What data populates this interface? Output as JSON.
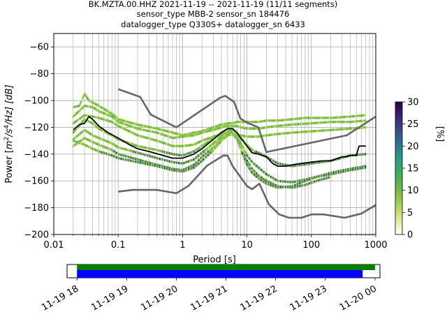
{
  "title_lines": [
    "BK.MZTA.00.HHZ   2021-11-19 -- 2021-11-19  (11/11 segments)",
    "sensor_type MBB-2 sensor_sn 184476",
    "datalogger_type Q330S+ datalogger_sn 6433"
  ],
  "chart_data": [
    {
      "type": "heatmap",
      "name": "ppsd",
      "xlabel": "Period [s]",
      "ylabel": "Power [m²/s⁴/Hz] [dB]",
      "ylabel_parts": {
        "pre": "Power [",
        "m": "m",
        "sup2": "2",
        "slash_s": "/s",
        "sup4": "4",
        "rest": "/Hz] [dB]"
      },
      "x_scale": "log",
      "xlim": [
        0.01,
        1000
      ],
      "ylim": [
        -200,
        -50
      ],
      "x_ticks": [
        {
          "value": 0.01,
          "label": "0.01"
        },
        {
          "value": 0.1,
          "label": "0.1"
        },
        {
          "value": 1,
          "label": "1"
        },
        {
          "value": 10,
          "label": "10"
        },
        {
          "value": 100,
          "label": "100"
        },
        {
          "value": 1000,
          "label": "1000"
        }
      ],
      "y_ticks": [
        {
          "value": -60,
          "label": "−60"
        },
        {
          "value": -80,
          "label": "−80"
        },
        {
          "value": -100,
          "label": "−100"
        },
        {
          "value": -120,
          "label": "−120"
        },
        {
          "value": -140,
          "label": "−140"
        },
        {
          "value": -160,
          "label": "−160"
        },
        {
          "value": -180,
          "label": "−180"
        },
        {
          "value": -200,
          "label": "−200"
        }
      ],
      "grid": true,
      "series": [
        {
          "name": "mean",
          "color": "#000000",
          "x": [
            0.02,
            0.025,
            0.03,
            0.035,
            0.04,
            0.05,
            0.07,
            0.1,
            0.15,
            0.2,
            0.3,
            0.5,
            0.7,
            1,
            1.5,
            2,
            3,
            4,
            5,
            6,
            7,
            8,
            10,
            12,
            15,
            20,
            25,
            30,
            40,
            50,
            70,
            100,
            150,
            200,
            300,
            350,
            400,
            500,
            550,
            700
          ],
          "y": [
            -122,
            -118,
            -117,
            -112,
            -114,
            -119,
            -124,
            -128,
            -133,
            -136,
            -138,
            -141,
            -143,
            -143,
            -140,
            -136,
            -129,
            -124,
            -121,
            -121,
            -124,
            -128,
            -134,
            -139,
            -140,
            -142,
            -147,
            -149,
            -149,
            -148,
            -147,
            -146,
            -145,
            -145,
            -142,
            -142,
            -141,
            -141,
            -134,
            -134
          ]
        },
        {
          "name": "noise-model-high",
          "color": "#666666",
          "x": [
            0.1,
            0.22,
            0.32,
            0.8,
            3.8,
            4.6,
            6.3,
            7.9,
            10,
            15,
            20,
            354,
            1000
          ],
          "y": [
            -91.5,
            -97.4,
            -110.5,
            -120,
            -98,
            -96.5,
            -101,
            -113.5,
            -116.5,
            -120,
            -138.5,
            -126,
            -112
          ]
        },
        {
          "name": "noise-model-low",
          "color": "#666666",
          "x": [
            0.1,
            0.17,
            0.4,
            0.8,
            1.24,
            2.4,
            4.3,
            5,
            6,
            10,
            12,
            15.6,
            21.9,
            31.6,
            45,
            70,
            101,
            154,
            328,
            600,
            1000
          ],
          "y": [
            -168,
            -166.7,
            -166.7,
            -169.2,
            -163.7,
            -148.6,
            -141.1,
            -141.1,
            -149,
            -163.8,
            -166.2,
            -162.1,
            -177.5,
            -185,
            -187.5,
            -187.5,
            -185,
            -185,
            -187.5,
            -184.4,
            -178
          ]
        }
      ],
      "density_colorbar": {
        "label": "[%]",
        "range": [
          0,
          30
        ],
        "ticks": [
          {
            "value": 0,
            "label": "0"
          },
          {
            "value": 5,
            "label": "5"
          },
          {
            "value": 10,
            "label": "10"
          },
          {
            "value": 15,
            "label": "15"
          },
          {
            "value": 20,
            "label": "20"
          },
          {
            "value": 25,
            "label": "25"
          },
          {
            "value": 30,
            "label": "30"
          }
        ],
        "colormap": [
          "#ffffff",
          "#cfe57a",
          "#8bc34a",
          "#4caf50",
          "#1f9e89",
          "#31688e",
          "#3b2f7e",
          "#2d004b"
        ]
      },
      "density_traces": [
        {
          "name": "trace-1",
          "x": [
            0.02,
            0.025,
            0.03,
            0.035,
            0.05,
            0.08,
            0.1,
            0.2,
            0.4,
            0.7,
            1,
            1.5,
            2,
            3,
            4,
            5,
            6,
            7,
            8,
            10,
            12,
            15,
            20,
            30,
            50,
            80,
            120,
            200,
            400,
            700
          ],
          "y": [
            -105,
            -104,
            -95,
            -100,
            -104,
            -110,
            -114,
            -118,
            -121,
            -124,
            -126,
            -124,
            -123,
            -120,
            -118,
            -117,
            -117,
            -116,
            -116,
            -116,
            -116,
            -116,
            -115,
            -115,
            -114,
            -113,
            -113,
            -113,
            -112,
            -111
          ]
        },
        {
          "name": "trace-2",
          "x": [
            0.02,
            0.03,
            0.04,
            0.05,
            0.08,
            0.1,
            0.2,
            0.4,
            0.7,
            1,
            1.5,
            2,
            3,
            4,
            5,
            6,
            7,
            8,
            10,
            15,
            20,
            30,
            50,
            100,
            200,
            400,
            700
          ],
          "y": [
            -112,
            -104,
            -105,
            -108,
            -112,
            -116,
            -121,
            -124,
            -128,
            -127,
            -126,
            -124,
            -122,
            -120,
            -119,
            -119,
            -119,
            -120,
            -121,
            -121,
            -120,
            -119,
            -118,
            -117,
            -116,
            -116,
            -115
          ]
        },
        {
          "name": "trace-3",
          "x": [
            0.02,
            0.03,
            0.04,
            0.05,
            0.08,
            0.1,
            0.2,
            0.4,
            0.7,
            1,
            1.5,
            2,
            3,
            4,
            5,
            6,
            8,
            10,
            15,
            20,
            30,
            50,
            100,
            200,
            400,
            700
          ],
          "y": [
            -117,
            -111,
            -112,
            -113,
            -116,
            -119,
            -126,
            -130,
            -134,
            -134,
            -133,
            -130,
            -127,
            -125,
            -124,
            -125,
            -126,
            -127,
            -127,
            -126,
            -125,
            -124,
            -123,
            -122,
            -121,
            -120
          ]
        },
        {
          "name": "trace-4",
          "x": [
            0.02,
            0.03,
            0.04,
            0.05,
            0.08,
            0.1,
            0.2,
            0.4,
            0.7,
            1,
            1.5,
            2,
            3,
            4,
            5,
            6,
            7,
            8,
            10,
            12,
            15,
            20,
            30,
            50,
            100,
            200,
            400,
            700
          ],
          "y": [
            -124,
            -114,
            -117,
            -121,
            -126,
            -129,
            -134,
            -137,
            -140,
            -141,
            -138,
            -134,
            -128,
            -124,
            -122,
            -122,
            -124,
            -128,
            -133,
            -137,
            -139,
            -142,
            -147,
            -149,
            -147,
            -145,
            -141,
            -140
          ]
        },
        {
          "name": "trace-5",
          "x": [
            0.02,
            0.03,
            0.04,
            0.05,
            0.08,
            0.1,
            0.2,
            0.4,
            0.7,
            1,
            1.5,
            2,
            3,
            4,
            5,
            6,
            7,
            8,
            10,
            12,
            15,
            20,
            30,
            50,
            80,
            120,
            200,
            400,
            700
          ],
          "y": [
            -129,
            -122,
            -126,
            -128,
            -132,
            -135,
            -139,
            -143,
            -146,
            -147,
            -144,
            -139,
            -132,
            -126,
            -123,
            -123,
            -126,
            -132,
            -141,
            -146,
            -150,
            -155,
            -160,
            -161,
            -159,
            -157,
            -154,
            -151,
            -149
          ]
        },
        {
          "name": "trace-6",
          "x": [
            0.02,
            0.03,
            0.04,
            0.05,
            0.08,
            0.1,
            0.2,
            0.4,
            0.7,
            1,
            1.5,
            2,
            3,
            4,
            5,
            6,
            7,
            8,
            10,
            12,
            15,
            20,
            30,
            50,
            80,
            120,
            200
          ],
          "y": [
            -134,
            -128,
            -131,
            -133,
            -137,
            -140,
            -144,
            -148,
            -151,
            -152,
            -148,
            -142,
            -135,
            -128,
            -124,
            -124,
            -128,
            -135,
            -145,
            -151,
            -156,
            -160,
            -164,
            -165,
            -163,
            -160,
            -157
          ]
        },
        {
          "name": "trace-7",
          "x": [
            0.02,
            0.03,
            0.04,
            0.05,
            0.08,
            0.1,
            0.2,
            0.4,
            0.7,
            1,
            1.5,
            2,
            3,
            4,
            5,
            6,
            7,
            8,
            10,
            12,
            15,
            20,
            30,
            50,
            80,
            120,
            200,
            400,
            700
          ],
          "y": [
            -130,
            -133,
            -136,
            -138,
            -141,
            -143,
            -146,
            -149,
            -152,
            -153,
            -150,
            -145,
            -137,
            -130,
            -126,
            -125,
            -129,
            -137,
            -148,
            -154,
            -158,
            -162,
            -165,
            -164,
            -160,
            -157,
            -155,
            -152,
            -150
          ]
        }
      ]
    },
    {
      "type": "bar",
      "name": "data-coverage",
      "tick_labels": [
        "11-19 18",
        "11-19 19",
        "11-19 20",
        "11-19 21",
        "11-19 22",
        "11-19 23",
        "11-20 00"
      ],
      "tick_values": [
        18,
        19,
        20,
        21,
        22,
        23,
        24
      ],
      "xlim": [
        17.8,
        24.1
      ],
      "bars": [
        {
          "name": "coverage-green",
          "color": "#008000",
          "start": 18,
          "end": 24
        },
        {
          "name": "coverage-blue",
          "color": "#0000ff",
          "start": 18,
          "end": 23.75
        }
      ]
    }
  ]
}
